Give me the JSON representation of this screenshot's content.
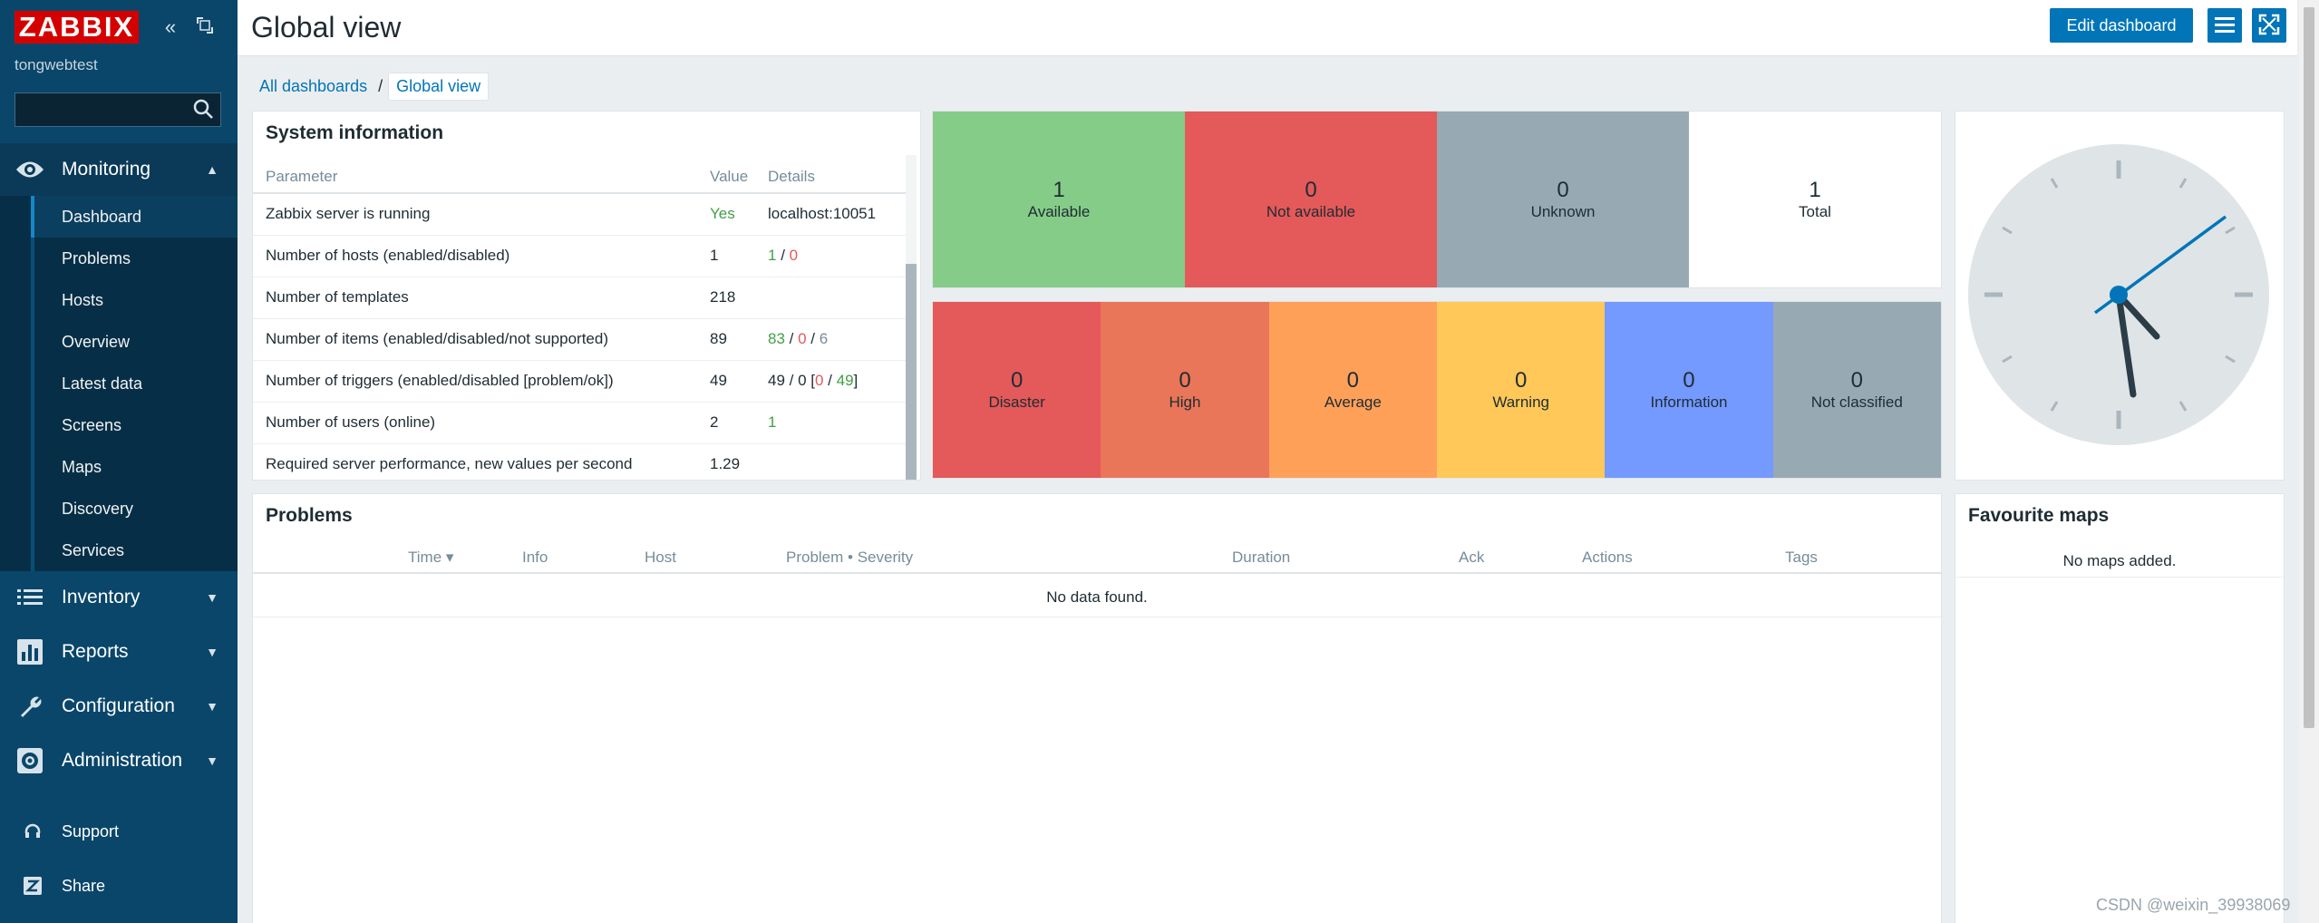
{
  "app": {
    "logo": "ZABBIX",
    "server_name": "tongwebtest"
  },
  "search": {
    "value": "",
    "placeholder": ""
  },
  "sidebar": {
    "monitoring": {
      "label": "Monitoring",
      "items": [
        "Dashboard",
        "Problems",
        "Hosts",
        "Overview",
        "Latest data",
        "Screens",
        "Maps",
        "Discovery",
        "Services"
      ],
      "active": "Dashboard"
    },
    "sections": [
      {
        "label": "Inventory",
        "icon": "list-icon"
      },
      {
        "label": "Reports",
        "icon": "bar-chart-icon"
      },
      {
        "label": "Configuration",
        "icon": "wrench-icon"
      },
      {
        "label": "Administration",
        "icon": "gear-icon"
      }
    ],
    "bottom": [
      {
        "label": "Support",
        "icon": "headset-icon"
      },
      {
        "label": "Share",
        "icon": "share-z-icon"
      }
    ]
  },
  "header": {
    "title": "Global view",
    "edit_label": "Edit dashboard"
  },
  "breadcrumb": {
    "parent": "All dashboards",
    "separator": "/",
    "current": "Global view"
  },
  "system_info": {
    "title": "System information",
    "columns": [
      "Parameter",
      "Value",
      "Details"
    ],
    "rows": [
      {
        "param": "Zabbix server is running",
        "value": "Yes",
        "details": "localhost:10051"
      },
      {
        "param": "Number of hosts (enabled/disabled)",
        "value": "1",
        "d1": "1",
        "d2": "0"
      },
      {
        "param": "Number of templates",
        "value": "218"
      },
      {
        "param": "Number of items (enabled/disabled/not supported)",
        "value": "89",
        "d1": "83",
        "d2": "0",
        "d3": "6"
      },
      {
        "param": "Number of triggers (enabled/disabled [problem/ok])",
        "value": "49",
        "prefix": "49 / 0 [",
        "d1": "0",
        "d2": "49",
        "suffix": "]"
      },
      {
        "param": "Number of users (online)",
        "value": "2",
        "d1": "1"
      },
      {
        "param": "Required server performance, new values per second",
        "value": "1.29"
      }
    ]
  },
  "host_availability": [
    {
      "count": "1",
      "label": "Available",
      "color": "#86cc89"
    },
    {
      "count": "0",
      "label": "Not available",
      "color": "#e45959"
    },
    {
      "count": "0",
      "label": "Unknown",
      "color": "#97aab3"
    },
    {
      "count": "1",
      "label": "Total",
      "color": "#ffffff"
    }
  ],
  "problems_by_severity": [
    {
      "count": "0",
      "label": "Disaster",
      "color": "#e45959"
    },
    {
      "count": "0",
      "label": "High",
      "color": "#e97659"
    },
    {
      "count": "0",
      "label": "Average",
      "color": "#ffa059"
    },
    {
      "count": "0",
      "label": "Warning",
      "color": "#ffc859"
    },
    {
      "count": "0",
      "label": "Information",
      "color": "#7499ff"
    },
    {
      "count": "0",
      "label": "Not classified",
      "color": "#97aab3"
    }
  ],
  "problems": {
    "title": "Problems",
    "columns": {
      "time": "Time ▾",
      "info": "Info",
      "host": "Host",
      "problem": "Problem • Severity",
      "duration": "Duration",
      "ack": "Ack",
      "actions": "Actions",
      "tags": "Tags"
    },
    "empty": "No data found."
  },
  "favourite_maps": {
    "title": "Favourite maps",
    "empty": "No maps added."
  },
  "watermark": "CSDN @weixin_39938069",
  "colors": {
    "accent": "#0275b8",
    "sidebar": "#0a466a",
    "logo": "#d40000"
  }
}
